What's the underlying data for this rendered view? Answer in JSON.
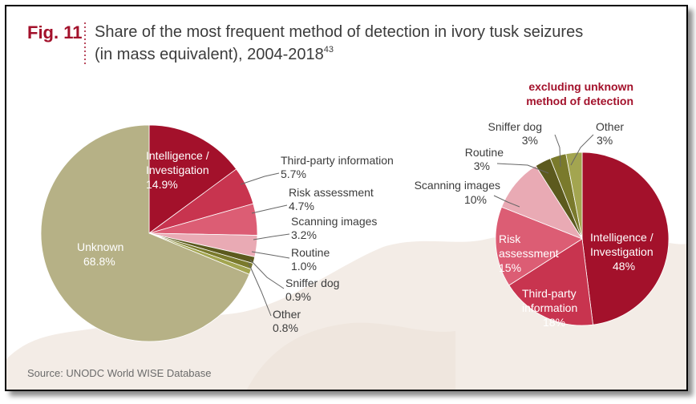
{
  "figure": {
    "label": "Fig. 11",
    "title_line1": "Share of the most frequent method of detection in ivory tusk seizures",
    "title_line2": "(in mass equivalent), 2004-2018",
    "footnote_ref": "43",
    "source": "Source: UNODC World WISE Database"
  },
  "chart_data": [
    {
      "type": "pie",
      "title": "",
      "unit": "%",
      "slices": [
        {
          "label": "Intelligence / Investigation",
          "value": 14.9,
          "value_label": "14.9%",
          "color": "#a3112b"
        },
        {
          "label": "Third-party information",
          "value": 5.7,
          "value_label": "5.7%",
          "color": "#c8344f"
        },
        {
          "label": "Risk assessment",
          "value": 4.7,
          "value_label": "4.7%",
          "color": "#dc5d74"
        },
        {
          "label": "Scanning images",
          "value": 3.2,
          "value_label": "3.2%",
          "color": "#e9aab4"
        },
        {
          "label": "Routine",
          "value": 1.0,
          "value_label": "1.0%",
          "color": "#5c5a1e"
        },
        {
          "label": "Sniffer dog",
          "value": 0.9,
          "value_label": "0.9%",
          "color": "#7a7a2c"
        },
        {
          "label": "Other",
          "value": 0.8,
          "value_label": "0.8%",
          "color": "#a3a550"
        },
        {
          "label": "Unknown",
          "value": 68.8,
          "value_label": "68.8%",
          "color": "#b6b186"
        }
      ]
    },
    {
      "type": "pie",
      "title": "excluding unknown method of detection",
      "unit": "%",
      "slices": [
        {
          "label": "Intelligence / Investigation",
          "value": 48,
          "value_label": "48%",
          "color": "#a3112b"
        },
        {
          "label": "Third-party information",
          "value": 18,
          "value_label": "18%",
          "color": "#c8344f"
        },
        {
          "label": "Risk assessment",
          "value": 15,
          "value_label": "15%",
          "color": "#dc5d74"
        },
        {
          "label": "Scanning images",
          "value": 10,
          "value_label": "10%",
          "color": "#e9aab4"
        },
        {
          "label": "Routine",
          "value": 3,
          "value_label": "3%",
          "color": "#5c5a1e"
        },
        {
          "label": "Sniffer dog",
          "value": 3,
          "value_label": "3%",
          "color": "#7a7a2c"
        },
        {
          "label": "Other",
          "value": 3,
          "value_label": "3%",
          "color": "#a3a550"
        }
      ]
    }
  ]
}
